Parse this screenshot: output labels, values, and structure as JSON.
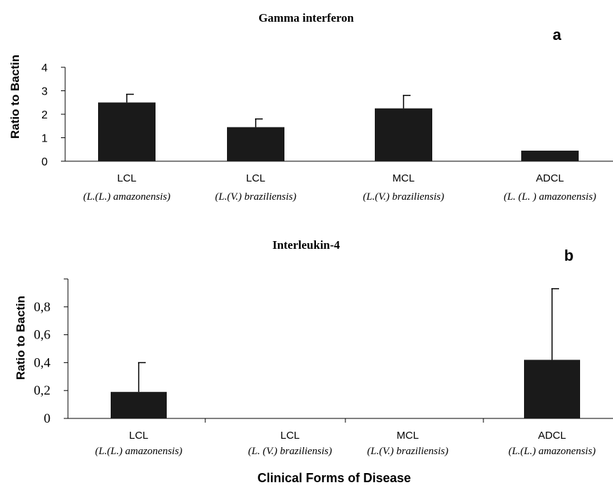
{
  "chart_data": [
    {
      "type": "bar",
      "panel_letter": "a",
      "title": "Gamma interferon",
      "ylabel": "Ratio to Bactin",
      "ylim": [
        0,
        4
      ],
      "yticks": [
        "0",
        "1",
        "2",
        "3",
        "4"
      ],
      "categories": [
        "LCL",
        "LCL",
        "MCL",
        "ADCL"
      ],
      "species": [
        "(L.(L.) amazonensis)",
        "(L.(V.) braziliensis)",
        "(L.(V.) braziliensis)",
        "(L. (L. ) amazonensis)"
      ],
      "values": [
        2.5,
        1.45,
        2.25,
        0.45
      ],
      "errors": [
        0.35,
        0.35,
        0.55,
        0
      ],
      "grid": false
    },
    {
      "type": "bar",
      "panel_letter": "b",
      "title": "Interleukin-4",
      "ylabel": "Ratio to Bactin",
      "xlabel": "Clinical Forms of Disease",
      "ylim": [
        0,
        1.0
      ],
      "yticks": [
        "0",
        "0,2",
        "0,4",
        "0,6",
        "0,8"
      ],
      "categories": [
        "LCL",
        "LCL",
        "MCL",
        "ADCL"
      ],
      "species": [
        "(L.(L.) amazonensis)",
        "(L. (V.) braziliensis)",
        "(L.(V.) braziliensis)",
        "(L.(L.) amazonensis)"
      ],
      "values": [
        0.19,
        0,
        0,
        0.42
      ],
      "errors": [
        0.21,
        0,
        0,
        0.51
      ],
      "grid": false
    }
  ]
}
